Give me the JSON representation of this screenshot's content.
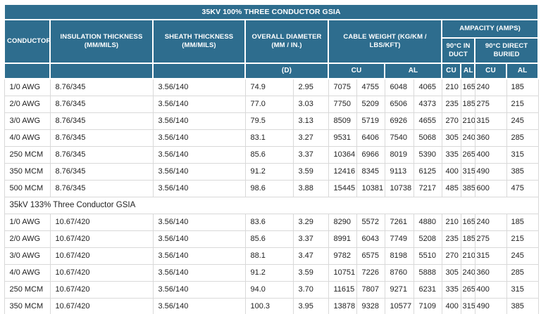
{
  "colors": {
    "header_bg": "#2e6d8e",
    "header_text": "#ffffff",
    "data_text": "#222222",
    "cell_border": "#d9d9d9",
    "page_bg": "#ffffff"
  },
  "table": {
    "title": "35KV 100% THREE CONDUCTOR GSIA",
    "headers": {
      "conductor": "CONDUCTOR",
      "insulation": "INSULATION THICKNESS (MM/MILS)",
      "sheath": "SHEATH THICKNESS (MM/MILS)",
      "diameter": "OVERALL DIAMETER (MM / IN.)",
      "weight": "CABLE WEIGHT (KG/KM / LBS/KFT)",
      "ampacity": "AMPACITY (AMPS)",
      "in_duct": "90°C IN DUCT",
      "direct_buried": "90°C DIRECT BURIED",
      "d": "(D)",
      "weight_cu": "CU",
      "weight_al": "AL",
      "duct_cu": "CU",
      "duct_al": "AL",
      "buried_cu": "CU",
      "buried_al": "AL"
    },
    "sections": [
      {
        "label": null,
        "rows": [
          [
            "1/0 AWG",
            "8.76/345",
            "3.56/140",
            "74.9",
            "2.95",
            "7075",
            "4755",
            "6048",
            "4065",
            "210",
            "165",
            "240",
            "185"
          ],
          [
            "2/0 AWG",
            "8.76/345",
            "3.56/140",
            "77.0",
            "3.03",
            "7750",
            "5209",
            "6506",
            "4373",
            "235",
            "185",
            "275",
            "215"
          ],
          [
            "3/0 AWG",
            "8.76/345",
            "3.56/140",
            "79.5",
            "3.13",
            "8509",
            "5719",
            "6926",
            "4655",
            "270",
            "210",
            "315",
            "245"
          ],
          [
            "4/0 AWG",
            "8.76/345",
            "3.56/140",
            "83.1",
            "3.27",
            "9531",
            "6406",
            "7540",
            "5068",
            "305",
            "240",
            "360",
            "285"
          ],
          [
            "250 MCM",
            "8.76/345",
            "3.56/140",
            "85.6",
            "3.37",
            "10364",
            "6966",
            "8019",
            "5390",
            "335",
            "265",
            "400",
            "315"
          ],
          [
            "350 MCM",
            "8.76/345",
            "3.56/140",
            "91.2",
            "3.59",
            "12416",
            "8345",
            "9113",
            "6125",
            "400",
            "315",
            "490",
            "385"
          ],
          [
            "500 MCM",
            "8.76/345",
            "3.56/140",
            "98.6",
            "3.88",
            "15445",
            "10381",
            "10738",
            "7217",
            "485",
            "385",
            "600",
            "475"
          ]
        ]
      },
      {
        "label": "35kV 133% Three Conductor GSIA",
        "rows": [
          [
            "1/0 AWG",
            "10.67/420",
            "3.56/140",
            "83.6",
            "3.29",
            "8290",
            "5572",
            "7261",
            "4880",
            "210",
            "165",
            "240",
            "185"
          ],
          [
            "2/0 AWG",
            "10.67/420",
            "3.56/140",
            "85.6",
            "3.37",
            "8991",
            "6043",
            "7749",
            "5208",
            "235",
            "185",
            "275",
            "215"
          ],
          [
            "3/0 AWG",
            "10.67/420",
            "3.56/140",
            "88.1",
            "3.47",
            "9782",
            "6575",
            "8198",
            "5510",
            "270",
            "210",
            "315",
            "245"
          ],
          [
            "4/0 AWG",
            "10.67/420",
            "3.56/140",
            "91.2",
            "3.59",
            "10751",
            "7226",
            "8760",
            "5888",
            "305",
            "240",
            "360",
            "285"
          ],
          [
            "250 MCM",
            "10.67/420",
            "3.56/140",
            "94.0",
            "3.70",
            "11615",
            "7807",
            "9271",
            "6231",
            "335",
            "265",
            "400",
            "315"
          ],
          [
            "350 MCM",
            "10.67/420",
            "3.56/140",
            "100.3",
            "3.95",
            "13878",
            "9328",
            "10577",
            "7109",
            "400",
            "315",
            "490",
            "385"
          ]
        ]
      }
    ]
  }
}
